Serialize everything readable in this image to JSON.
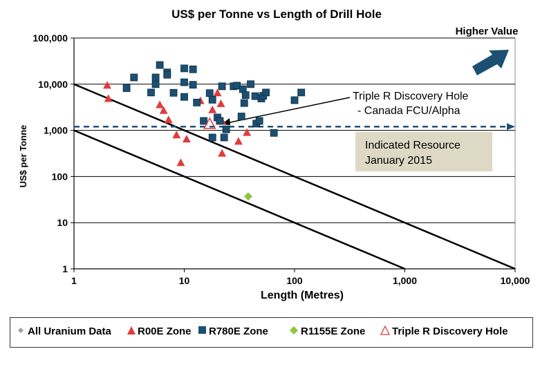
{
  "chart_data": {
    "type": "scatter",
    "title": "US$ per Tonne vs Length of Drill Hole",
    "xlabel": "Length (Metres)",
    "ylabel": "US$ per Tonne",
    "xscale": "log",
    "yscale": "log",
    "xlim": [
      1,
      10000
    ],
    "ylim": [
      1,
      100000
    ],
    "x_ticks": [
      "1",
      "10",
      "100",
      "1,000",
      "10,000"
    ],
    "y_ticks": [
      "1",
      "10",
      "100",
      "1,000",
      "10,000",
      "100,000"
    ],
    "grid": "horizontal",
    "legend_position": "bottom",
    "series": [
      {
        "name": "All Uranium Data",
        "marker": "diamond",
        "color": "#a0a0a0",
        "points": []
      },
      {
        "name": "R00E Zone",
        "marker": "triangle",
        "color": "#e03c3c",
        "points": [
          [
            2,
            9500
          ],
          [
            2.05,
            4900
          ],
          [
            6,
            3600
          ],
          [
            6.5,
            2700
          ],
          [
            7.2,
            1700
          ],
          [
            8.5,
            800
          ],
          [
            9.3,
            200
          ],
          [
            10.5,
            650
          ],
          [
            14,
            4400
          ],
          [
            18,
            2800
          ],
          [
            20,
            6500
          ],
          [
            21.5,
            3800
          ],
          [
            22,
            1600
          ],
          [
            22,
            320
          ],
          [
            31,
            580
          ],
          [
            37,
            900
          ]
        ]
      },
      {
        "name": "R780E Zone",
        "marker": "square",
        "color": "#1c5073",
        "points": [
          [
            3,
            8200
          ],
          [
            3.5,
            14000
          ],
          [
            5,
            6600
          ],
          [
            5.5,
            10000
          ],
          [
            5.5,
            14000
          ],
          [
            6,
            26000
          ],
          [
            7,
            18000
          ],
          [
            7,
            16000
          ],
          [
            8,
            6500
          ],
          [
            10,
            22000
          ],
          [
            10,
            11000
          ],
          [
            10,
            5300
          ],
          [
            12,
            21000
          ],
          [
            12,
            9700
          ],
          [
            13,
            4000
          ],
          [
            15,
            1600
          ],
          [
            17,
            6400
          ],
          [
            18,
            4600
          ],
          [
            18,
            700
          ],
          [
            20,
            1900
          ],
          [
            21,
            1600
          ],
          [
            22,
            9000
          ],
          [
            23,
            700
          ],
          [
            24,
            1050
          ],
          [
            28,
            9000
          ],
          [
            30,
            9300
          ],
          [
            33,
            2000
          ],
          [
            34,
            7800
          ],
          [
            35,
            3900
          ],
          [
            36,
            5800
          ],
          [
            40,
            10000
          ],
          [
            44,
            5500
          ],
          [
            45,
            1400
          ],
          [
            48,
            1600
          ],
          [
            50,
            4900
          ],
          [
            52,
            5600
          ],
          [
            55,
            6600
          ],
          [
            65,
            880
          ],
          [
            100,
            4500
          ],
          [
            115,
            6600
          ]
        ]
      },
      {
        "name": "R1155E Zone",
        "marker": "diamond",
        "color": "#8cc63f",
        "points": [
          [
            38,
            37
          ]
        ]
      },
      {
        "name": "Triple R Discovery Hole",
        "marker": "triangle-open",
        "color": "#e03c3c",
        "points": [
          [
            17,
            1350
          ]
        ]
      }
    ],
    "reference_lines": [
      {
        "name": "upper-diagonal",
        "from": [
          1,
          10000
        ],
        "to": [
          10000,
          1
        ]
      },
      {
        "name": "lower-diagonal",
        "from": [
          1,
          1000
        ],
        "to": [
          1000,
          1
        ]
      },
      {
        "name": "indicated-resource",
        "style": "dashed",
        "y": 1200,
        "from_x": 1,
        "to_x": 10000
      }
    ],
    "annotations": {
      "higher_value": "Higher Value",
      "discovery_line1": "Triple R Discovery Hole",
      "discovery_line2": "- Canada FCU/Alpha",
      "resource_line1": "Indicated Resource",
      "resource_line2": "January 2015"
    },
    "colors": {
      "diagonal": "#000000",
      "dashed_line": "#1f4e79",
      "arrow": "#1c5073",
      "resource_box": "#ddd9c4",
      "grid": "#000000"
    }
  }
}
